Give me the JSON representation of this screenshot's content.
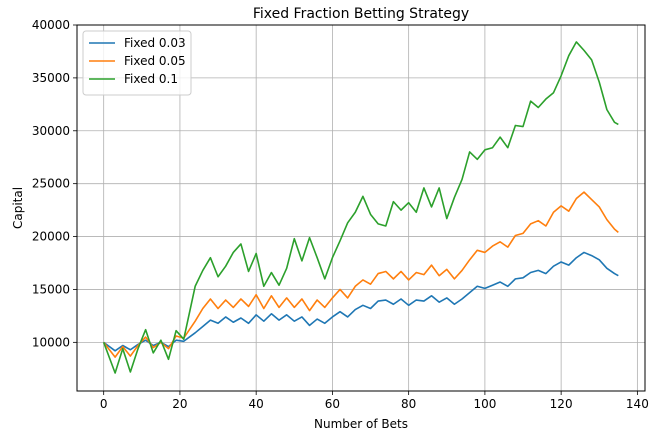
{
  "chart_data": {
    "type": "line",
    "title": "Fixed Fraction Betting Strategy",
    "xlabel": "Number of Bets",
    "ylabel": "Capital",
    "xlim": [
      -7,
      142
    ],
    "ylim": [
      5400,
      40000
    ],
    "xticks": [
      0,
      20,
      40,
      60,
      80,
      100,
      120,
      140
    ],
    "yticks": [
      10000,
      15000,
      20000,
      25000,
      30000,
      35000,
      40000
    ],
    "grid": true,
    "legend_position": "top-left",
    "series": [
      {
        "name": "Fixed 0.03",
        "color": "#1f77b4",
        "x": [
          0,
          3,
          5,
          7,
          9,
          11,
          13,
          15,
          17,
          19,
          21,
          24,
          26,
          28,
          30,
          32,
          34,
          36,
          38,
          40,
          42,
          44,
          46,
          48,
          50,
          52,
          54,
          56,
          58,
          60,
          62,
          64,
          66,
          68,
          70,
          72,
          74,
          76,
          78,
          80,
          82,
          84,
          86,
          88,
          90,
          92,
          94,
          96,
          98,
          100,
          102,
          104,
          106,
          108,
          110,
          112,
          114,
          116,
          118,
          120,
          122,
          124,
          126,
          128,
          130,
          132,
          134,
          135
        ],
        "values": [
          10000,
          9200,
          9700,
          9300,
          9800,
          10200,
          9700,
          10000,
          9600,
          10200,
          10100,
          10900,
          11500,
          12100,
          11800,
          12400,
          11900,
          12300,
          11800,
          12600,
          12000,
          12700,
          12100,
          12600,
          12000,
          12400,
          11600,
          12200,
          11800,
          12400,
          12900,
          12400,
          13100,
          13500,
          13200,
          13900,
          14000,
          13600,
          14100,
          13500,
          14000,
          13900,
          14400,
          13800,
          14200,
          13600,
          14100,
          14700,
          15300,
          15100,
          15400,
          15700,
          15300,
          16000,
          16100,
          16600,
          16800,
          16500,
          17200,
          17600,
          17300,
          18000,
          18500,
          18200,
          17800,
          17000,
          16500,
          16300
        ]
      },
      {
        "name": "Fixed 0.05",
        "color": "#ff7f0e",
        "x": [
          0,
          3,
          5,
          7,
          9,
          11,
          13,
          15,
          17,
          19,
          21,
          24,
          26,
          28,
          30,
          32,
          34,
          36,
          38,
          40,
          42,
          44,
          46,
          48,
          50,
          52,
          54,
          56,
          58,
          60,
          62,
          64,
          66,
          68,
          70,
          72,
          74,
          76,
          78,
          80,
          82,
          84,
          86,
          88,
          90,
          92,
          94,
          96,
          98,
          100,
          102,
          104,
          106,
          108,
          110,
          112,
          114,
          116,
          118,
          120,
          122,
          124,
          126,
          128,
          130,
          132,
          134,
          135
        ],
        "values": [
          10000,
          8600,
          9600,
          8700,
          9700,
          10500,
          9500,
          10000,
          9400,
          10600,
          10400,
          12000,
          13200,
          14100,
          13200,
          14000,
          13300,
          14100,
          13400,
          14500,
          13200,
          14400,
          13300,
          14200,
          13300,
          14100,
          13000,
          14000,
          13300,
          14200,
          15000,
          14200,
          15300,
          15900,
          15500,
          16500,
          16700,
          16000,
          16700,
          15900,
          16600,
          16400,
          17300,
          16300,
          16900,
          16000,
          16800,
          17800,
          18700,
          18500,
          19100,
          19500,
          19000,
          20100,
          20300,
          21200,
          21500,
          21000,
          22300,
          22900,
          22400,
          23600,
          24200,
          23500,
          22800,
          21600,
          20700,
          20400
        ]
      },
      {
        "name": "Fixed 0.1",
        "color": "#2ca02c",
        "x": [
          0,
          3,
          5,
          7,
          9,
          11,
          13,
          15,
          17,
          19,
          21,
          24,
          26,
          28,
          30,
          32,
          34,
          36,
          38,
          40,
          42,
          44,
          46,
          48,
          50,
          52,
          54,
          56,
          58,
          60,
          62,
          64,
          66,
          68,
          70,
          72,
          74,
          76,
          78,
          80,
          82,
          84,
          86,
          88,
          90,
          92,
          94,
          96,
          98,
          100,
          102,
          104,
          106,
          108,
          110,
          112,
          114,
          116,
          118,
          120,
          122,
          124,
          126,
          128,
          130,
          132,
          134,
          135
        ],
        "values": [
          10000,
          7100,
          9400,
          7200,
          9400,
          11200,
          9000,
          10200,
          8400,
          11100,
          10300,
          15300,
          16800,
          18000,
          16200,
          17200,
          18500,
          19300,
          16700,
          18400,
          15300,
          16600,
          15400,
          17000,
          19800,
          17700,
          19900,
          18000,
          16000,
          18000,
          19600,
          21300,
          22300,
          23800,
          22100,
          21200,
          21000,
          23300,
          22500,
          23200,
          22300,
          24600,
          22800,
          24600,
          21700,
          23700,
          25400,
          28000,
          27300,
          28200,
          28400,
          29400,
          28400,
          30500,
          30400,
          32800,
          32200,
          33000,
          33600,
          35200,
          37100,
          38400,
          37600,
          36700,
          34600,
          32000,
          30800,
          30600
        ]
      }
    ]
  }
}
